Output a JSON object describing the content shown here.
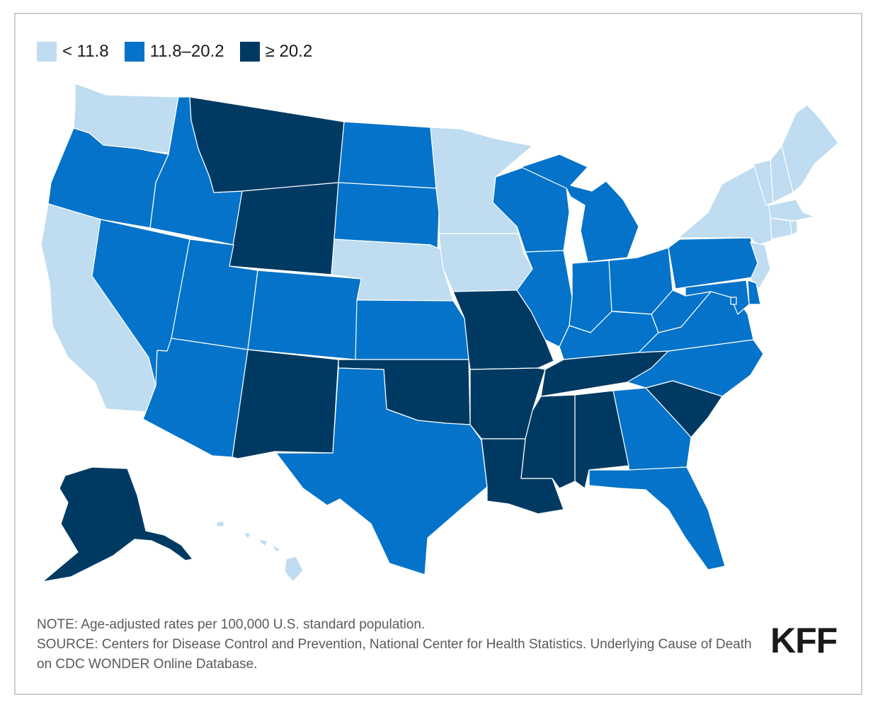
{
  "legend": [
    {
      "label": "< 11.8",
      "color": "#bfdcf0"
    },
    {
      "label": "11.8–20.2",
      "color": "#0473c9"
    },
    {
      "label": "≥ 20.2",
      "color": "#003a63"
    }
  ],
  "colors": {
    "low": "#bfdcf0",
    "mid": "#0473c9",
    "high": "#003a63"
  },
  "note": "NOTE: Age-adjusted rates per 100,000 U.S. standard population.",
  "source": "SOURCE: Centers for Disease Control and Prevention, National Center for Health Statistics. Underlying Cause of Death on CDC WONDER Online Database.",
  "logo": "KFF",
  "states": [
    {
      "name": "WA",
      "category": "low"
    },
    {
      "name": "OR",
      "category": "mid"
    },
    {
      "name": "CA",
      "category": "low"
    },
    {
      "name": "ID",
      "category": "mid"
    },
    {
      "name": "NV",
      "category": "mid"
    },
    {
      "name": "MT",
      "category": "high"
    },
    {
      "name": "WY",
      "category": "high"
    },
    {
      "name": "UT",
      "category": "mid"
    },
    {
      "name": "AZ",
      "category": "mid"
    },
    {
      "name": "CO",
      "category": "mid"
    },
    {
      "name": "NM",
      "category": "high"
    },
    {
      "name": "ND",
      "category": "mid"
    },
    {
      "name": "SD",
      "category": "mid"
    },
    {
      "name": "NE",
      "category": "low"
    },
    {
      "name": "KS",
      "category": "mid"
    },
    {
      "name": "OK",
      "category": "high"
    },
    {
      "name": "TX",
      "category": "mid"
    },
    {
      "name": "MN",
      "category": "low"
    },
    {
      "name": "IA",
      "category": "low"
    },
    {
      "name": "MO",
      "category": "high"
    },
    {
      "name": "AR",
      "category": "high"
    },
    {
      "name": "LA",
      "category": "high"
    },
    {
      "name": "WI",
      "category": "mid"
    },
    {
      "name": "IL",
      "category": "mid"
    },
    {
      "name": "MI",
      "category": "mid"
    },
    {
      "name": "IN",
      "category": "mid"
    },
    {
      "name": "OH",
      "category": "mid"
    },
    {
      "name": "KY",
      "category": "mid"
    },
    {
      "name": "TN",
      "category": "high"
    },
    {
      "name": "MS",
      "category": "high"
    },
    {
      "name": "AL",
      "category": "high"
    },
    {
      "name": "GA",
      "category": "mid"
    },
    {
      "name": "FL",
      "category": "mid"
    },
    {
      "name": "SC",
      "category": "high"
    },
    {
      "name": "NC",
      "category": "mid"
    },
    {
      "name": "VA",
      "category": "mid"
    },
    {
      "name": "WV",
      "category": "mid"
    },
    {
      "name": "PA",
      "category": "mid"
    },
    {
      "name": "NY",
      "category": "low"
    },
    {
      "name": "VT",
      "category": "low"
    },
    {
      "name": "NH",
      "category": "low"
    },
    {
      "name": "ME",
      "category": "low"
    },
    {
      "name": "MA",
      "category": "low"
    },
    {
      "name": "CT",
      "category": "low"
    },
    {
      "name": "RI",
      "category": "low"
    },
    {
      "name": "NJ",
      "category": "low"
    },
    {
      "name": "DE",
      "category": "mid"
    },
    {
      "name": "MD",
      "category": "mid"
    },
    {
      "name": "DC",
      "category": "mid"
    },
    {
      "name": "AK",
      "category": "high"
    },
    {
      "name": "HI",
      "category": "low"
    }
  ]
}
